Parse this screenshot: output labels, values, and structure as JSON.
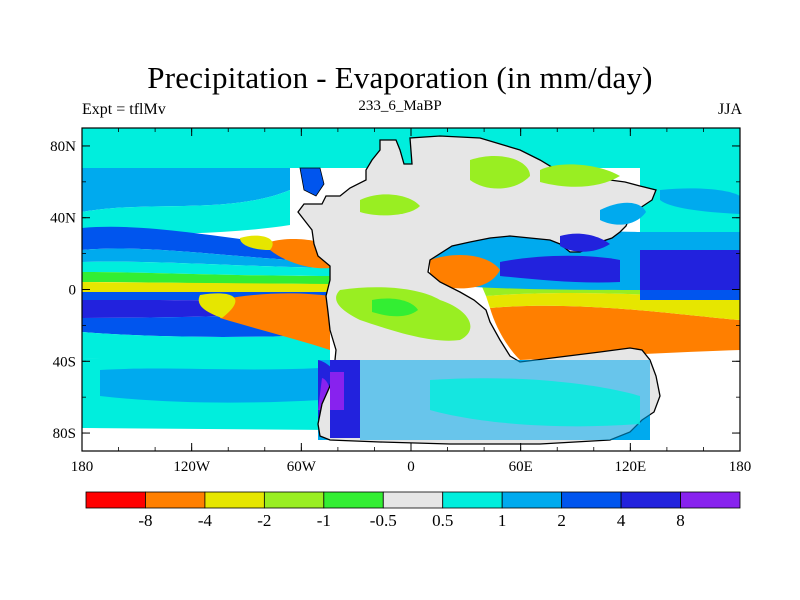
{
  "title": "Precipitation - Evaporation (in mm/day)",
  "left_label": "Expt = tflMv",
  "center_label": "233_6_MaBP",
  "right_label": "JJA",
  "map": {
    "lon_range": [
      -180,
      180
    ],
    "lat_range": [
      -90,
      90
    ],
    "lon_ticks": [
      {
        "value": -180,
        "label": "180"
      },
      {
        "value": -120,
        "label": "120W"
      },
      {
        "value": -60,
        "label": "60W"
      },
      {
        "value": 0,
        "label": "0"
      },
      {
        "value": 60,
        "label": "60E"
      },
      {
        "value": 120,
        "label": "120E"
      },
      {
        "value": 180,
        "label": "180"
      }
    ],
    "lat_ticks": [
      {
        "value": 80,
        "label": "80N"
      },
      {
        "value": 40,
        "label": "40N"
      },
      {
        "value": 0,
        "label": "0"
      },
      {
        "value": -40,
        "label": "40S"
      },
      {
        "value": -80,
        "label": "80S"
      }
    ],
    "land_color": "#e6e6e6",
    "coast_color": "#000000"
  },
  "colorbar": {
    "colors": [
      "#ff0000",
      "#ff7f00",
      "#e6e600",
      "#99ee22",
      "#33ee33",
      "#e6e6e6",
      "#00eedd",
      "#00aaee",
      "#0055ee",
      "#2222dd",
      "#8822ee"
    ],
    "labels": [
      "-8",
      "-4",
      "-2",
      "-1",
      "-0.5",
      "0.5",
      "1",
      "2",
      "4",
      "8"
    ]
  },
  "legend_color_names": [
    "red",
    "orange",
    "yellow",
    "yellow-green",
    "green",
    "light-gray",
    "cyan",
    "sky-blue",
    "blue",
    "dark-blue",
    "violet"
  ]
}
